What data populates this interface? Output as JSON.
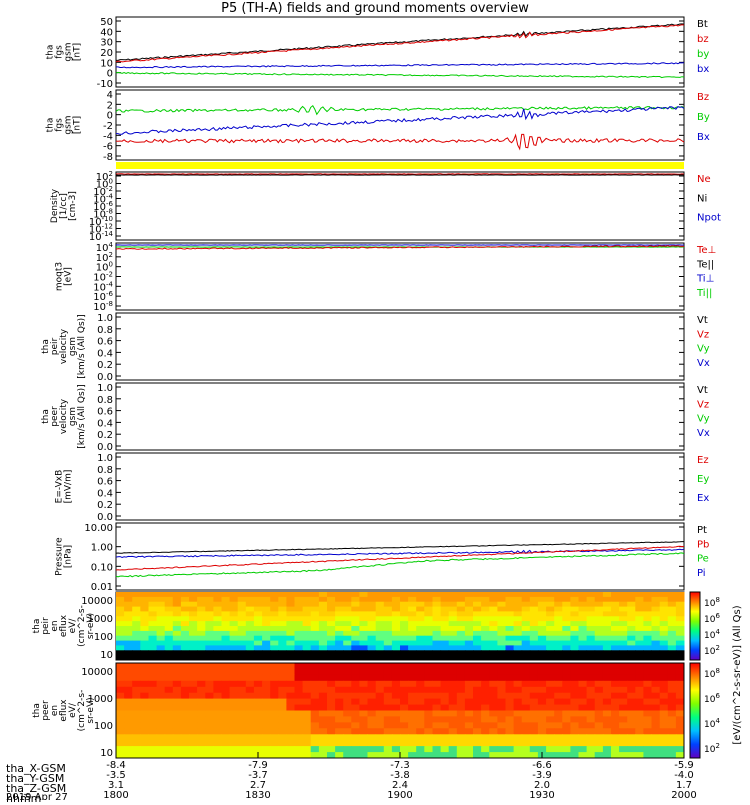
{
  "title": "P5 (TH-A) fields and ground moments overview",
  "colors": {
    "black": "#000000",
    "red": "#dd0000",
    "green": "#00cc00",
    "blue": "#0000cc",
    "yellow": "#ffff00"
  },
  "chart_data": [
    {
      "id": "fgs",
      "type": "line",
      "ylabel": [
        "tha",
        "fgs",
        "gsm",
        "[nT]"
      ],
      "yticks": [
        "50",
        "40",
        "30",
        "20",
        "10",
        "0",
        "-10"
      ],
      "series": [
        {
          "name": "Bt",
          "color": "black"
        },
        {
          "name": "bz",
          "color": "red"
        },
        {
          "name": "by",
          "color": "green"
        },
        {
          "name": "bx",
          "color": "blue"
        }
      ]
    },
    {
      "id": "fgs_dsl",
      "type": "line",
      "ylabel": [
        "tha",
        "fgs",
        "gsm",
        "[nT]"
      ],
      "yticks": [
        "4",
        "2",
        "0",
        "-2",
        "-4",
        "-6",
        "-8"
      ],
      "series": [
        {
          "name": "Bz",
          "color": "red"
        },
        {
          "name": "By",
          "color": "green"
        },
        {
          "name": "Bx",
          "color": "blue"
        }
      ]
    },
    {
      "id": "density",
      "type": "line",
      "ylabel": [
        "Density",
        "[1/cc]",
        "[cm-3]"
      ],
      "yticks": [
        "10^2",
        "10^0",
        "10^-2",
        "10^-4",
        "10^-6",
        "10^-8",
        "10^-10",
        "10^-12",
        "10^-14"
      ],
      "series": [
        {
          "name": "Ne",
          "color": "red"
        },
        {
          "name": "Ni",
          "color": "black"
        },
        {
          "name": "Npot",
          "color": "blue"
        }
      ]
    },
    {
      "id": "temp",
      "type": "line",
      "ylabel": [
        "moqt3",
        "[eV]"
      ],
      "yticks": [
        "10^4",
        "10^2",
        "10^0",
        "10^-2",
        "10^-4",
        "10^-6",
        "10^-8"
      ],
      "series": [
        {
          "name": "Te⊥",
          "color": "red"
        },
        {
          "name": "Te||",
          "color": "black"
        },
        {
          "name": "Ti⊥",
          "color": "blue"
        },
        {
          "name": "Ti||",
          "color": "green"
        }
      ]
    },
    {
      "id": "peir_vel",
      "type": "line",
      "ylabel": [
        "tha",
        "peir",
        "velocity",
        "gsm",
        "[km/s (All Qs)]"
      ],
      "yticks": [
        "1.0",
        "0.8",
        "0.6",
        "0.4",
        "0.2",
        "0.0"
      ],
      "series": [
        {
          "name": "Vt",
          "color": "black"
        },
        {
          "name": "Vz",
          "color": "red"
        },
        {
          "name": "Vy",
          "color": "green"
        },
        {
          "name": "Vx",
          "color": "blue"
        }
      ]
    },
    {
      "id": "peer_vel",
      "type": "line",
      "ylabel": [
        "tha",
        "peer",
        "velocity",
        "gsm",
        "[km/s (All Qs)]"
      ],
      "yticks": [
        "1.0",
        "0.8",
        "0.6",
        "0.4",
        "0.2",
        "0.0"
      ],
      "series": [
        {
          "name": "Vt",
          "color": "black"
        },
        {
          "name": "Vz",
          "color": "red"
        },
        {
          "name": "Vy",
          "color": "green"
        },
        {
          "name": "Vx",
          "color": "blue"
        }
      ]
    },
    {
      "id": "efield",
      "type": "line",
      "ylabel": [
        "E=-VxB",
        "[mV/m]"
      ],
      "yticks": [
        "1.0",
        "0.8",
        "0.6",
        "0.4",
        "0.2",
        "0.0"
      ],
      "series": [
        {
          "name": "Ez",
          "color": "red"
        },
        {
          "name": "Ey",
          "color": "green"
        },
        {
          "name": "Ex",
          "color": "blue"
        }
      ]
    },
    {
      "id": "pressure",
      "type": "line",
      "ylabel": [
        "Pressure",
        "[nPa]"
      ],
      "yticks": [
        "10.00",
        "1.00",
        "0.10",
        "0.01"
      ],
      "series": [
        {
          "name": "Pt",
          "color": "black"
        },
        {
          "name": "Pb",
          "color": "red"
        },
        {
          "name": "Pe",
          "color": "green"
        },
        {
          "name": "Pi",
          "color": "blue"
        }
      ]
    },
    {
      "id": "peir_en",
      "type": "heatmap",
      "ylabel": [
        "tha",
        "peir",
        "en",
        "eflux",
        "eV/",
        "(cm^2-s-",
        "sr-eV)"
      ],
      "yticks": [
        "10000",
        "1000",
        "100",
        "10"
      ]
    },
    {
      "id": "peer_en",
      "type": "heatmap",
      "ylabel": [
        "tha",
        "peer",
        "en",
        "eflux",
        "eV/",
        "(cm^2-s-",
        "sr-eV)"
      ],
      "yticks": [
        "10000",
        "1000",
        "100",
        "10"
      ]
    }
  ],
  "colorbar": {
    "label": "[eV/(cm^2-s-sr-eV)] (All Qs)",
    "ticks": [
      "10^8",
      "10^6",
      "10^4",
      "10^2"
    ]
  },
  "xaxis": {
    "rows": [
      {
        "label": "tha_X-GSM",
        "values": [
          "-8.4",
          "-7.9",
          "-7.3",
          "-6.6",
          "-5.9"
        ]
      },
      {
        "label": "tha_Y-GSM",
        "values": [
          "-3.5",
          "-3.7",
          "-3.8",
          "-3.9",
          "-4.0"
        ]
      },
      {
        "label": "tha_Z-GSM",
        "values": [
          "3.1",
          "2.7",
          "2.4",
          "2.0",
          "1.7"
        ]
      },
      {
        "label": "hhmm",
        "values": [
          "1800",
          "1830",
          "1900",
          "1930",
          "2000"
        ]
      }
    ],
    "date": "2019 Apr 27"
  }
}
